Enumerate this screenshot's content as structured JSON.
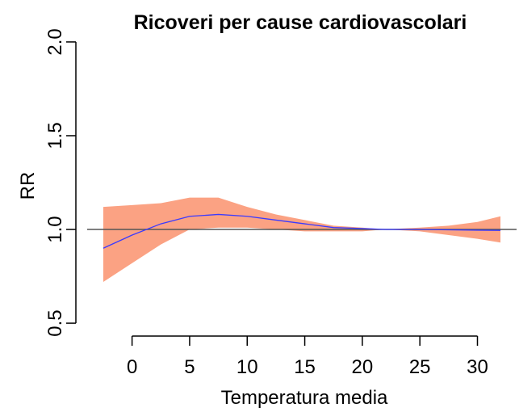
{
  "chart_data": {
    "type": "line",
    "title": "Ricoveri per cause cardiovascolari",
    "xlabel": "Temperatura media",
    "ylabel": "RR",
    "x": [
      -2.5,
      0,
      2.5,
      5,
      7.5,
      10,
      12.5,
      15,
      17.5,
      20,
      22,
      25,
      27.5,
      30,
      32
    ],
    "series": [
      {
        "name": "RR",
        "color": "#3a3aff",
        "values": [
          0.9,
          0.97,
          1.03,
          1.07,
          1.08,
          1.07,
          1.05,
          1.03,
          1.01,
          1.005,
          1.0,
          1.0,
          0.998,
          0.996,
          0.995
        ],
        "lower": [
          0.72,
          0.82,
          0.92,
          1.0,
          1.01,
          1.01,
          1.0,
          0.99,
          0.99,
          0.99,
          1.0,
          0.99,
          0.97,
          0.95,
          0.93
        ],
        "upper": [
          1.12,
          1.13,
          1.14,
          1.17,
          1.17,
          1.12,
          1.08,
          1.05,
          1.02,
          1.01,
          1.0,
          1.01,
          1.02,
          1.04,
          1.07
        ],
        "band_color": "#fba283"
      }
    ],
    "hline": 1.0,
    "hline_color": "#555555",
    "xlim": [
      -3.9,
      33.4
    ],
    "ylim": [
      0.44,
      2.06
    ],
    "xticks": [
      0,
      5,
      10,
      15,
      20,
      25,
      30
    ],
    "yticks": [
      {
        "value": 0.5,
        "label": "0.5"
      },
      {
        "value": 1.0,
        "label": "1.0"
      },
      {
        "value": 1.5,
        "label": "1.5"
      },
      {
        "value": 2.0,
        "label": "2.0"
      }
    ]
  }
}
